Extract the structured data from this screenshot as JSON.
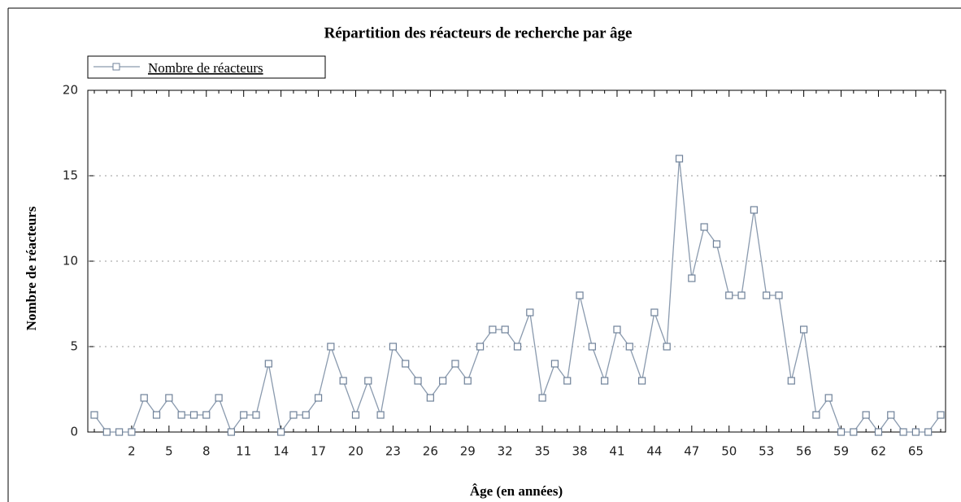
{
  "chart_data": {
    "type": "line",
    "title": "Répartition des réacteurs de recherche par âge",
    "x_label": "Âge (en années)",
    "y_label": "Nombre de réacteurs",
    "categories": [
      null,
      null,
      null,
      "2",
      null,
      null,
      "5",
      null,
      null,
      "8",
      null,
      null,
      "11",
      null,
      null,
      "14",
      null,
      null,
      "17",
      null,
      null,
      "20",
      null,
      null,
      "23",
      null,
      null,
      "26",
      null,
      null,
      "29",
      null,
      null,
      "32",
      null,
      null,
      "35",
      null,
      null,
      "38",
      null,
      null,
      "41",
      null,
      null,
      "44",
      null,
      null,
      "47",
      null,
      null,
      "50",
      null,
      null,
      "53",
      null,
      null,
      "56",
      null,
      null,
      "59",
      null,
      null,
      "62",
      null,
      null,
      "65",
      null,
      null
    ],
    "series": [
      {
        "name": "Nombre de réacteurs",
        "color": "#8a9aae",
        "values": [
          1,
          0,
          0,
          0,
          2,
          1,
          2,
          1,
          1,
          1,
          2,
          0,
          1,
          1,
          4,
          0,
          1,
          1,
          2,
          5,
          3,
          1,
          3,
          1,
          5,
          4,
          3,
          2,
          3,
          4,
          3,
          5,
          6,
          6,
          5,
          7,
          2,
          4,
          3,
          8,
          5,
          3,
          6,
          5,
          3,
          7,
          5,
          16,
          9,
          12,
          11,
          8,
          8,
          13,
          8,
          8,
          3,
          6,
          1,
          2,
          0,
          0,
          1,
          0,
          1,
          0,
          0,
          0,
          1
        ]
      }
    ],
    "ylim": [
      0,
      20
    ],
    "yticks": [
      0,
      5,
      10,
      15,
      20
    ],
    "grid": true,
    "legend": "top-left"
  }
}
